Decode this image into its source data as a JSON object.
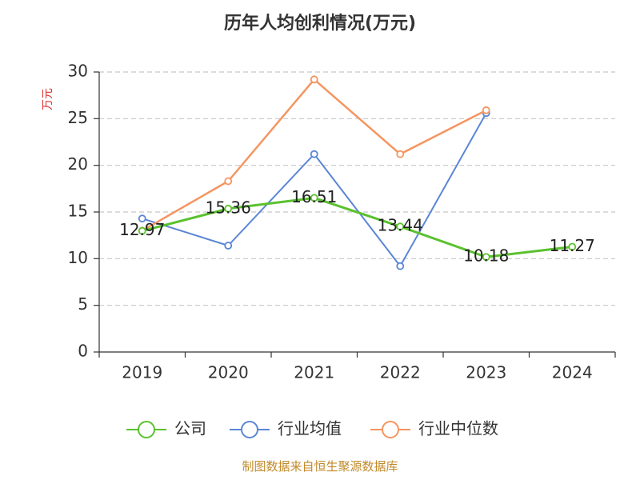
{
  "source": "制图数据来自恒生聚源数据库",
  "chart_data": {
    "type": "line",
    "title": "历年人均创利情况(万元)",
    "ylabel": "万元",
    "xlabel": "",
    "categories": [
      "2019",
      "2020",
      "2021",
      "2022",
      "2023",
      "2024"
    ],
    "ylim": [
      0,
      30
    ],
    "yticks": [
      0,
      5,
      10,
      15,
      20,
      25,
      30
    ],
    "grid": true,
    "legend_position": "bottom",
    "series": [
      {
        "name": "公司",
        "values": [
          12.97,
          15.36,
          16.51,
          13.44,
          10.18,
          11.27
        ],
        "labels": [
          "12.97",
          "15.36",
          "16.51",
          "13.44",
          "10.18",
          "11.27"
        ],
        "color": "#5ac12e",
        "width": 3
      },
      {
        "name": "行业均值",
        "values": [
          14.3,
          11.4,
          21.2,
          9.2,
          25.6,
          null
        ],
        "color": "#5b86d6",
        "width": 2
      },
      {
        "name": "行业中位数",
        "values": [
          13.0,
          18.3,
          29.2,
          21.2,
          25.9,
          null
        ],
        "color": "#f59560",
        "width": 2.5
      }
    ]
  }
}
